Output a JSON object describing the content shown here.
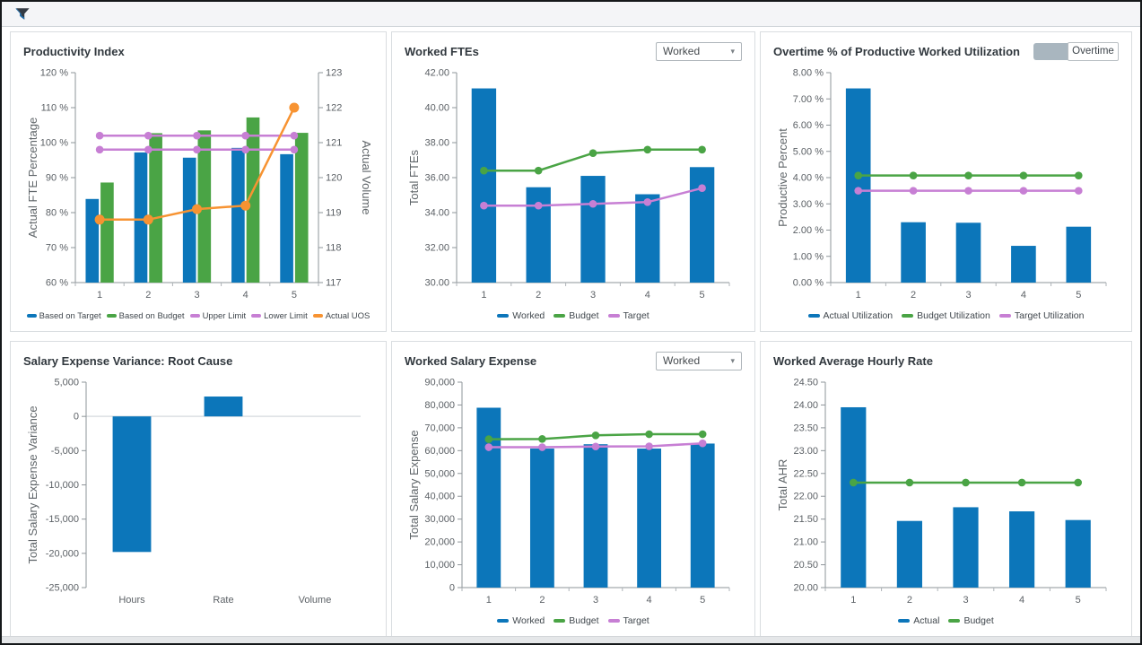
{
  "topbar": {
    "filter_icon": "funnel-icon"
  },
  "colors": {
    "blue": "#0c76ba",
    "green": "#4aa445",
    "purple": "#c77fd4",
    "orange": "#f79332",
    "axis_line": "#8e9499",
    "tick_text": "#5c6166",
    "axis_title_text": "#5f6569",
    "zero_line": "#dcdfe2"
  },
  "panels": [
    {
      "name": "productivity-index",
      "control": null
    },
    {
      "name": "worked-ftes",
      "control": {
        "type": "dropdown",
        "value": "Worked"
      }
    },
    {
      "name": "overtime-utilization",
      "control": {
        "type": "toggle",
        "label": "Overtime"
      }
    },
    {
      "name": "salary-expense-variance",
      "control": null
    },
    {
      "name": "worked-salary-expense",
      "control": {
        "type": "dropdown",
        "value": "Worked"
      }
    },
    {
      "name": "worked-average-hourly-rate",
      "control": null
    }
  ],
  "chart_data": [
    {
      "type": "bar",
      "title": "Productivity Index",
      "categories": [
        "1",
        "2",
        "3",
        "4",
        "5"
      ],
      "series": [
        {
          "name": "Based on Target",
          "type": "bar",
          "color": "blue",
          "values": [
            83.9,
            97.2,
            95.7,
            98.5,
            96.7
          ]
        },
        {
          "name": "Based on Budget",
          "type": "bar",
          "color": "green",
          "values": [
            88.6,
            102.7,
            103.5,
            107.2,
            102.8
          ]
        },
        {
          "name": "Upper Limit",
          "type": "line",
          "color": "purple",
          "values": [
            102,
            102,
            102,
            102,
            102
          ]
        },
        {
          "name": "Lower Limit",
          "type": "line",
          "color": "purple",
          "values": [
            98,
            98,
            98,
            98,
            98
          ]
        },
        {
          "name": "Actual UOS",
          "type": "line",
          "color": "orange",
          "axis": "right",
          "marker_r": 5.5,
          "values": [
            118.8,
            118.8,
            119.1,
            119.2,
            122
          ]
        }
      ],
      "y_left": {
        "label": "Actual FTE Percentage",
        "min": 60,
        "max": 120,
        "step": 10,
        "format": "pct0"
      },
      "y_right": {
        "label": "Actual Volume",
        "min": 117,
        "max": 123,
        "step": 1,
        "format": "int"
      },
      "legend": true
    },
    {
      "type": "bar",
      "title": "Worked FTEs",
      "categories": [
        "1",
        "2",
        "3",
        "4",
        "5"
      ],
      "series": [
        {
          "name": "Worked",
          "type": "bar",
          "color": "blue",
          "values": [
            41.1,
            35.45,
            36.1,
            35.05,
            36.6
          ]
        },
        {
          "name": "Budget",
          "type": "line",
          "color": "green",
          "values": [
            36.4,
            36.4,
            37.4,
            37.6,
            37.6
          ]
        },
        {
          "name": "Target",
          "type": "line",
          "color": "purple",
          "values": [
            34.4,
            34.4,
            34.5,
            34.6,
            35.4
          ]
        }
      ],
      "y_left": {
        "label": "Total FTEs",
        "min": 30,
        "max": 42,
        "step": 2,
        "format": "dec2"
      },
      "legend": true
    },
    {
      "type": "bar",
      "title": "Overtime % of Productive Worked Utilization",
      "categories": [
        "1",
        "2",
        "3",
        "4",
        "5"
      ],
      "series": [
        {
          "name": "Actual Utilization",
          "type": "bar",
          "color": "blue",
          "values": [
            7.4,
            2.3,
            2.28,
            1.4,
            2.13
          ]
        },
        {
          "name": "Budget Utilization",
          "type": "line",
          "color": "green",
          "values": [
            4.08,
            4.08,
            4.08,
            4.08,
            4.08
          ]
        },
        {
          "name": "Target Utilization",
          "type": "line",
          "color": "purple",
          "values": [
            3.5,
            3.5,
            3.5,
            3.5,
            3.5
          ]
        }
      ],
      "y_left": {
        "label": "Productive Percent",
        "min": 0,
        "max": 8,
        "step": 1,
        "format": "pct2"
      },
      "legend": true
    },
    {
      "type": "bar",
      "title": "Salary Expense Variance: Root Cause",
      "categories": [
        "Hours",
        "Rate",
        "Volume"
      ],
      "series": [
        {
          "name": "Variance",
          "type": "bar",
          "color": "blue",
          "values": [
            -19800,
            2900,
            0
          ]
        }
      ],
      "y_left": {
        "label": "Total Salary Expense Variance",
        "min": -25000,
        "max": 5000,
        "step": 5000,
        "format": "thousands"
      },
      "legend": false,
      "zero_line": true,
      "no_baseline": true,
      "bar_ratio": 0.42
    },
    {
      "type": "bar",
      "title": "Worked Salary Expense",
      "categories": [
        "1",
        "2",
        "3",
        "4",
        "5"
      ],
      "series": [
        {
          "name": "Worked",
          "type": "bar",
          "color": "blue",
          "values": [
            78800,
            60900,
            62800,
            60900,
            63100
          ]
        },
        {
          "name": "Budget",
          "type": "line",
          "color": "green",
          "values": [
            65000,
            65100,
            66700,
            67200,
            67200
          ]
        },
        {
          "name": "Target",
          "type": "line",
          "color": "purple",
          "values": [
            61500,
            61500,
            61800,
            61900,
            63200
          ]
        }
      ],
      "y_left": {
        "label": "Total Salary Expense",
        "min": 0,
        "max": 90000,
        "step": 10000,
        "format": "thousands"
      },
      "legend": true
    },
    {
      "type": "bar",
      "title": "Worked Average Hourly Rate",
      "categories": [
        "1",
        "2",
        "3",
        "4",
        "5"
      ],
      "series": [
        {
          "name": "Actual",
          "type": "bar",
          "color": "blue",
          "values": [
            23.95,
            21.46,
            21.76,
            21.67,
            21.48
          ]
        },
        {
          "name": "Budget",
          "type": "line",
          "color": "green",
          "values": [
            22.3,
            22.3,
            22.3,
            22.3,
            22.3
          ]
        }
      ],
      "y_left": {
        "label": "Total AHR",
        "min": 20,
        "max": 24.5,
        "step": 0.5,
        "format": "dec2"
      },
      "legend": true
    }
  ]
}
